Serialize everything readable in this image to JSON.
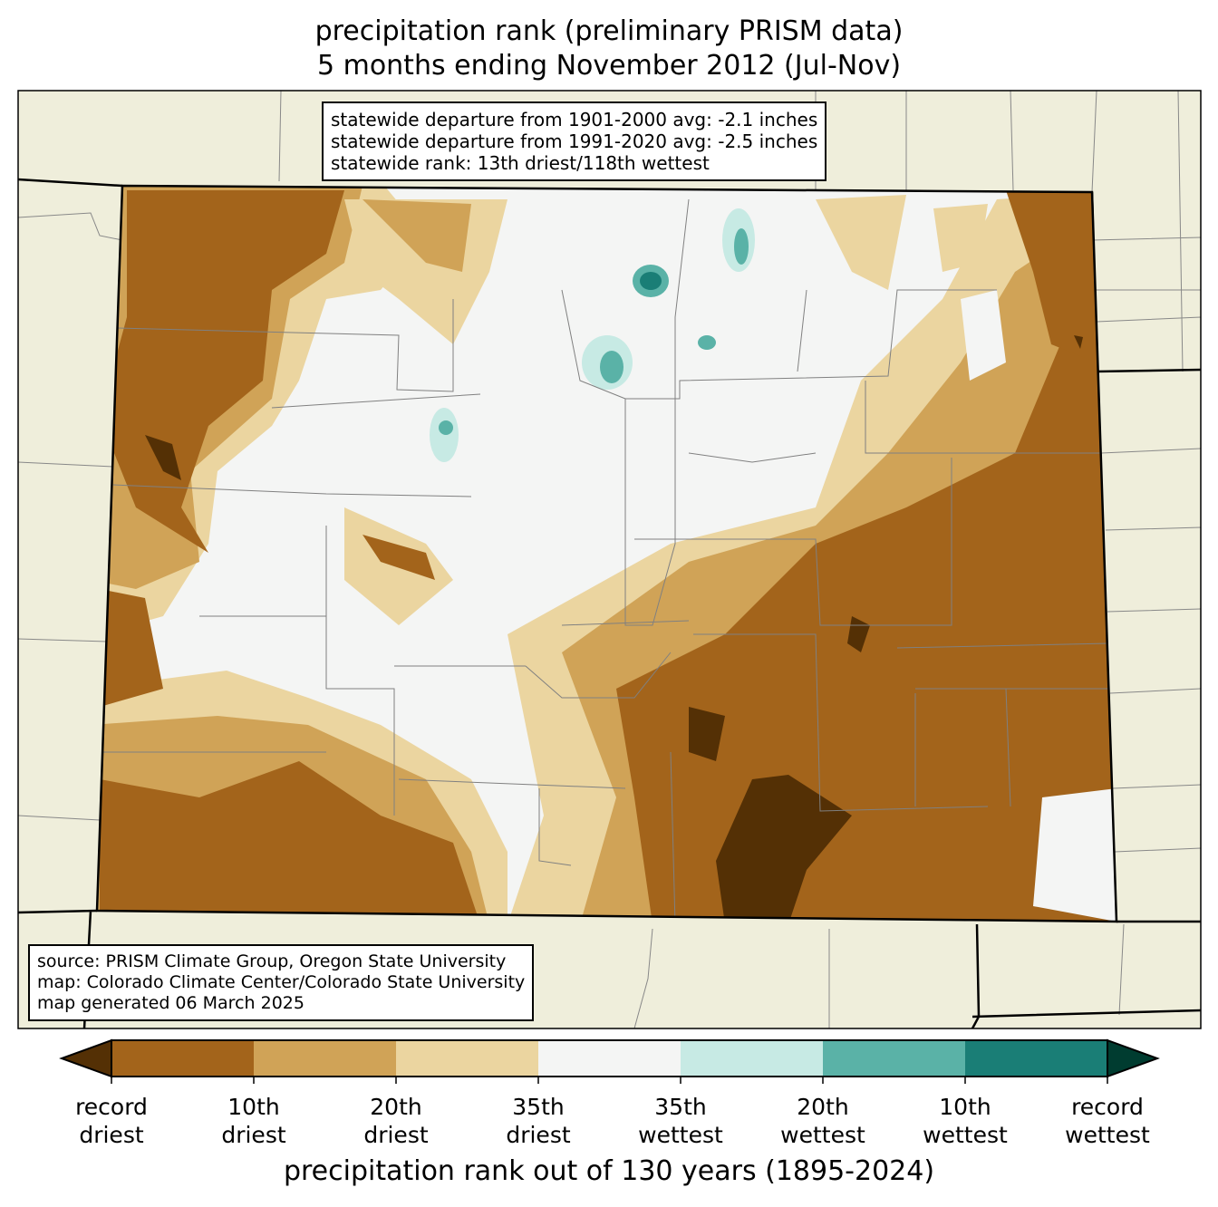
{
  "title": {
    "line1": "precipitation rank (preliminary PRISM data)",
    "line2": "5 months ending November 2012 (Jul-Nov)"
  },
  "stats_box": {
    "line1": "statewide departure from 1901-2000 avg: -2.1 inches",
    "line2": "statewide departure from 1991-2020 avg: -2.5 inches",
    "line3": "statewide rank: 13th driest/118th wettest"
  },
  "source_box": {
    "line1": "source: PRISM Climate Group, Oregon State University",
    "line2": "map: Colorado Climate Center/Colorado State University",
    "line3": "map generated 06 March 2025"
  },
  "colorbar": {
    "label": "precipitation rank out of 130 years (1895-2024)",
    "colors": [
      "#543005",
      "#a3641b",
      "#d0a357",
      "#ebd5a0",
      "#f4f5f4",
      "#c7eae4",
      "#5ab2a7",
      "#1a7e76",
      "#003c30"
    ],
    "ticks": [
      {
        "l1": "record",
        "l2": "driest"
      },
      {
        "l1": "10th",
        "l2": "driest"
      },
      {
        "l1": "20th",
        "l2": "driest"
      },
      {
        "l1": "35th",
        "l2": "driest"
      },
      {
        "l1": "35th",
        "l2": "wettest"
      },
      {
        "l1": "20th",
        "l2": "wettest"
      },
      {
        "l1": "10th",
        "l2": "wettest"
      },
      {
        "l1": "record",
        "l2": "wettest"
      }
    ]
  },
  "colors": {
    "land": "#efeedb",
    "county_line": "#808080"
  }
}
